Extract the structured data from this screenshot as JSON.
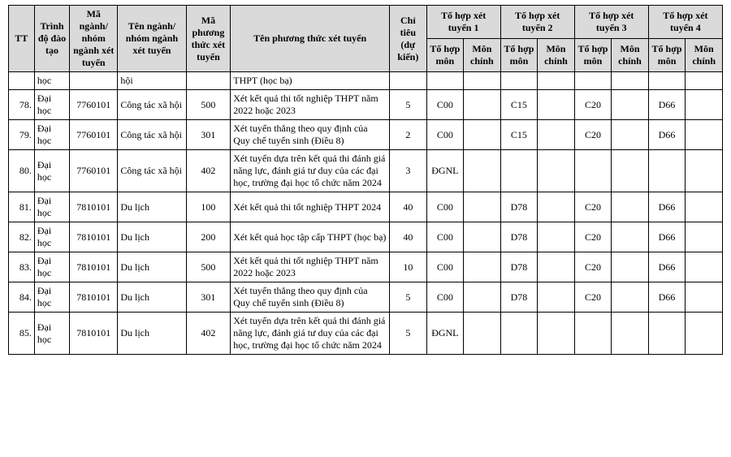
{
  "colors": {
    "header_bg": "#dadada",
    "border": "#000000",
    "text": "#000000",
    "page_bg": "#ffffff"
  },
  "typography": {
    "font_family": "Times New Roman",
    "font_size_pt": 9
  },
  "table": {
    "header": {
      "tt": "TT",
      "trinh_do": "Trình độ đào tạo",
      "ma_nganh": "Mã ngành/ nhóm ngành xét tuyển",
      "ten_nganh": "Tên ngành/ nhóm ngành xét tuyển",
      "ma_phuong": "Mã phương thức xét tuyển",
      "ten_phuong": "Tên phương thức xét tuyển",
      "chi_tieu": "Chỉ tiêu (dự kiến)",
      "group1": "Tổ hợp xét tuyển 1",
      "group2": "Tổ hợp xét tuyển 2",
      "group3": "Tổ hợp xét tuyển 3",
      "group4": "Tổ hợp xét tuyển 4",
      "to_hop_mon": "Tổ hợp môn",
      "mon_chinh": "Môn chính"
    },
    "rows": [
      {
        "tt": "",
        "trinh": "học",
        "ma": "",
        "ten": "hội",
        "maphuong": "",
        "phuong": "THPT (học bạ)",
        "chi": "",
        "th1": "",
        "mc1": "",
        "th2": "",
        "mc2": "",
        "th3": "",
        "mc3": "",
        "th4": "",
        "mc4": ""
      },
      {
        "tt": "78.",
        "trinh": "Đại học",
        "ma": "7760101",
        "ten": "Công tác xã hội",
        "maphuong": "500",
        "phuong": "Xét kết quả thi tốt nghiệp THPT năm 2022 hoặc 2023",
        "chi": "5",
        "th1": "C00",
        "mc1": "",
        "th2": "C15",
        "mc2": "",
        "th3": "C20",
        "mc3": "",
        "th4": "D66",
        "mc4": ""
      },
      {
        "tt": "79.",
        "trinh": "Đại học",
        "ma": "7760101",
        "ten": "Công tác xã hội",
        "maphuong": "301",
        "phuong": "Xét tuyển thẳng theo quy định của Quy chế tuyển sinh (Điều 8)",
        "chi": "2",
        "th1": "C00",
        "mc1": "",
        "th2": "C15",
        "mc2": "",
        "th3": "C20",
        "mc3": "",
        "th4": "D66",
        "mc4": ""
      },
      {
        "tt": "80.",
        "trinh": "Đại học",
        "ma": "7760101",
        "ten": "Công tác xã hội",
        "maphuong": "402",
        "phuong": "Xét tuyển dựa trên kết quả thi đánh giá năng lực, đánh giá tư duy của các đại học, trường đại học tổ chức năm 2024",
        "chi": "3",
        "th1": "ĐGNL",
        "mc1": "",
        "th2": "",
        "mc2": "",
        "th3": "",
        "mc3": "",
        "th4": "",
        "mc4": ""
      },
      {
        "tt": "81.",
        "trinh": "Đại học",
        "ma": "7810101",
        "ten": "Du lịch",
        "maphuong": "100",
        "phuong": "Xét kết quả thi tốt nghiệp THPT 2024",
        "chi": "40",
        "th1": "C00",
        "mc1": "",
        "th2": "D78",
        "mc2": "",
        "th3": "C20",
        "mc3": "",
        "th4": "D66",
        "mc4": ""
      },
      {
        "tt": "82.",
        "trinh": "Đại học",
        "ma": "7810101",
        "ten": "Du lịch",
        "maphuong": "200",
        "phuong": "Xét kết quả học tập cấp THPT (học bạ)",
        "chi": "40",
        "th1": "C00",
        "mc1": "",
        "th2": "D78",
        "mc2": "",
        "th3": "C20",
        "mc3": "",
        "th4": "D66",
        "mc4": ""
      },
      {
        "tt": "83.",
        "trinh": "Đại học",
        "ma": "7810101",
        "ten": "Du lịch",
        "maphuong": "500",
        "phuong": "Xét kết quả thi tốt nghiệp THPT năm 2022 hoặc 2023",
        "chi": "10",
        "th1": "C00",
        "mc1": "",
        "th2": "D78",
        "mc2": "",
        "th3": "C20",
        "mc3": "",
        "th4": "D66",
        "mc4": ""
      },
      {
        "tt": "84.",
        "trinh": "Đại học",
        "ma": "7810101",
        "ten": "Du lịch",
        "maphuong": "301",
        "phuong": "Xét tuyển thẳng theo quy định của Quy chế tuyển sinh (Điều 8)",
        "chi": "5",
        "th1": "C00",
        "mc1": "",
        "th2": "D78",
        "mc2": "",
        "th3": "C20",
        "mc3": "",
        "th4": "D66",
        "mc4": ""
      },
      {
        "tt": "85.",
        "trinh": "Đại học",
        "ma": "7810101",
        "ten": "Du lịch",
        "maphuong": "402",
        "phuong": "Xét tuyển dựa trên kết quả thi đánh giá năng lực, đánh giá tư duy của các đại học, trường đại học tổ chức năm 2024",
        "chi": "5",
        "th1": "ĐGNL",
        "mc1": "",
        "th2": "",
        "mc2": "",
        "th3": "",
        "mc3": "",
        "th4": "",
        "mc4": ""
      }
    ]
  }
}
